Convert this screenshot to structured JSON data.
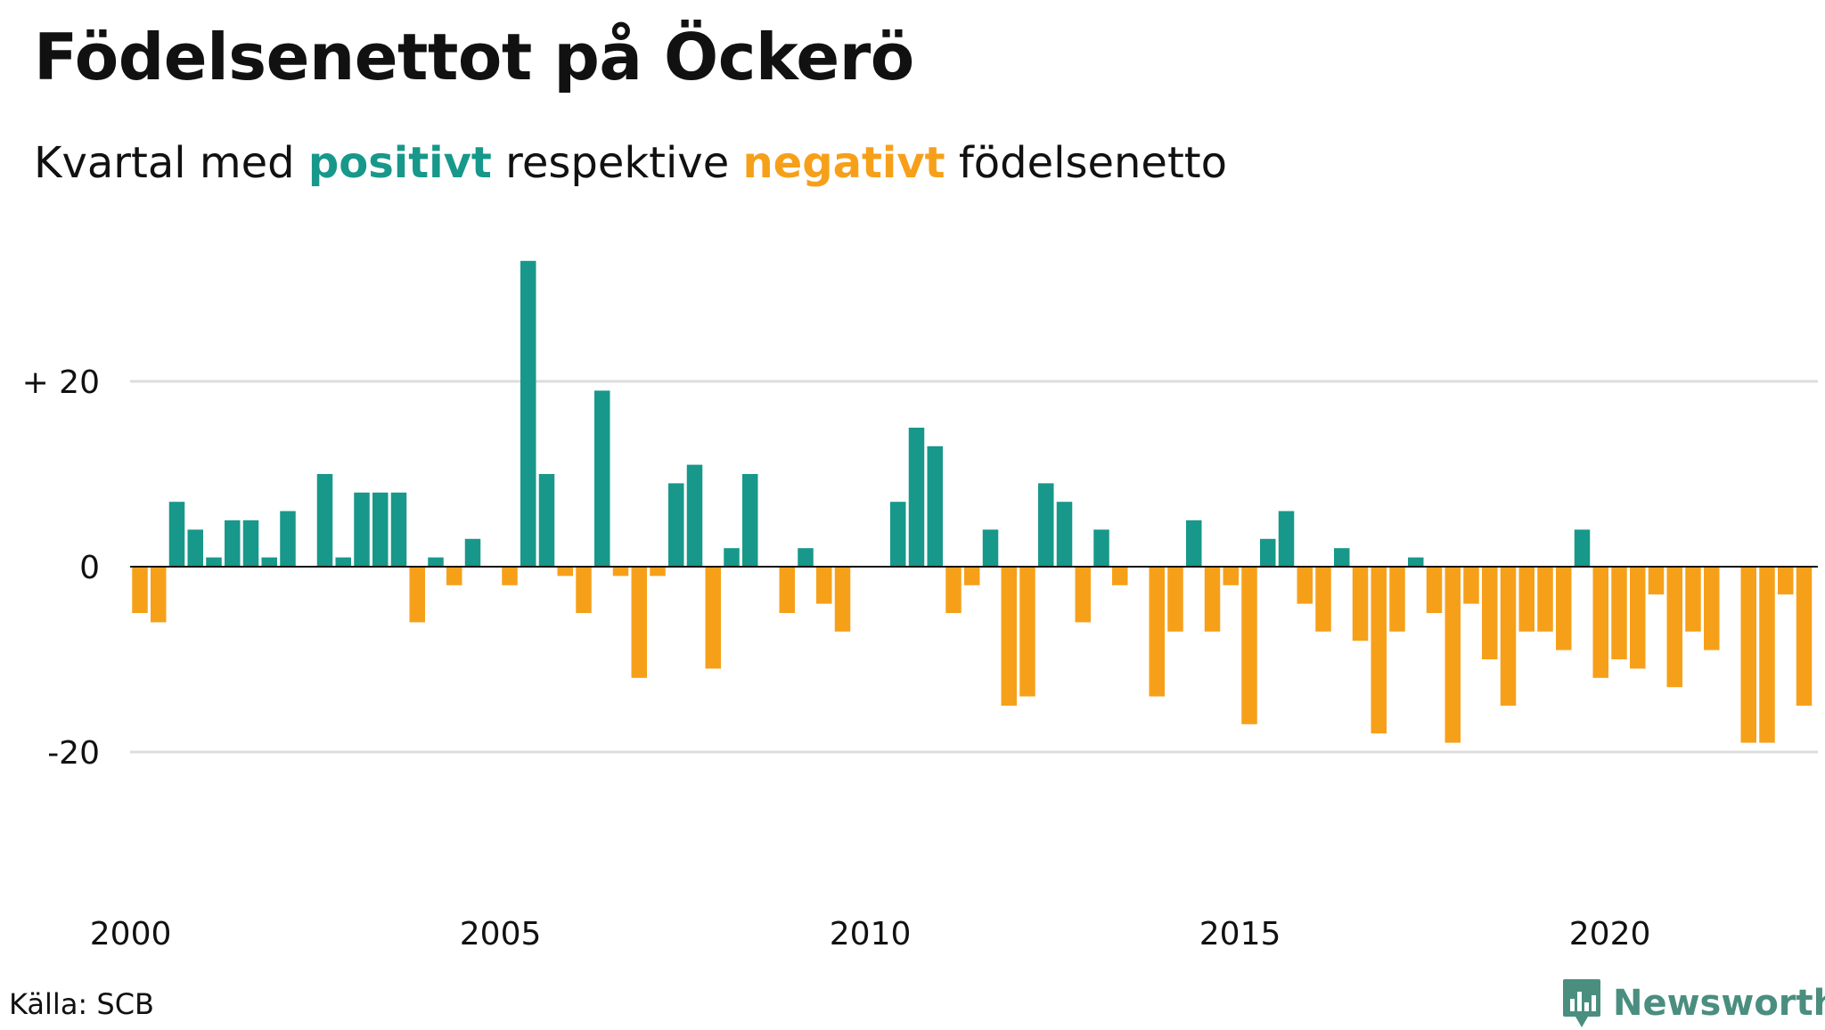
{
  "title": "Födelsenettot på Öckerö",
  "subtitle": {
    "prefix": "Kvartal med ",
    "positive_word": "positivt",
    "middle": " respektive ",
    "negative_word": "negativt",
    "suffix": " födelsenetto"
  },
  "source": "Källa: SCB",
  "brand": "Newsworthy",
  "colors": {
    "positive": "#17988a",
    "negative": "#f6a01a",
    "grid": "#dddddd",
    "brand": "#4a8e80"
  },
  "chart_data": {
    "type": "bar",
    "start": "2000 Q1",
    "frequency": "quarterly",
    "values": [
      -5,
      -6,
      7,
      4,
      1,
      5,
      5,
      1,
      6,
      0,
      10,
      1,
      8,
      8,
      8,
      -6,
      1,
      -2,
      3,
      0,
      -2,
      33,
      10,
      -1,
      -5,
      19,
      -1,
      -12,
      -1,
      9,
      11,
      -11,
      2,
      10,
      0,
      -5,
      2,
      -4,
      -7,
      0,
      0,
      7,
      15,
      13,
      -5,
      -2,
      4,
      -15,
      -14,
      9,
      7,
      -6,
      4,
      -2,
      0,
      -14,
      -7,
      5,
      -7,
      -2,
      -17,
      3,
      6,
      -4,
      -7,
      2,
      -8,
      -18,
      -7,
      1,
      -5,
      -19,
      -4,
      -10,
      -15,
      -7,
      -7,
      -9,
      4,
      -12,
      -10,
      -11,
      -3,
      -13,
      -7,
      -9,
      0,
      -19,
      -19,
      -3,
      -15
    ],
    "y_ticks": [
      {
        "value": 20,
        "label": "+ 20"
      },
      {
        "value": 0,
        "label": "0"
      },
      {
        "value": -20,
        "label": "-20"
      }
    ],
    "x_ticks": [
      "2000",
      "2005",
      "2010",
      "2015",
      "2020"
    ],
    "ylim": [
      -35,
      36
    ],
    "grid": true
  }
}
